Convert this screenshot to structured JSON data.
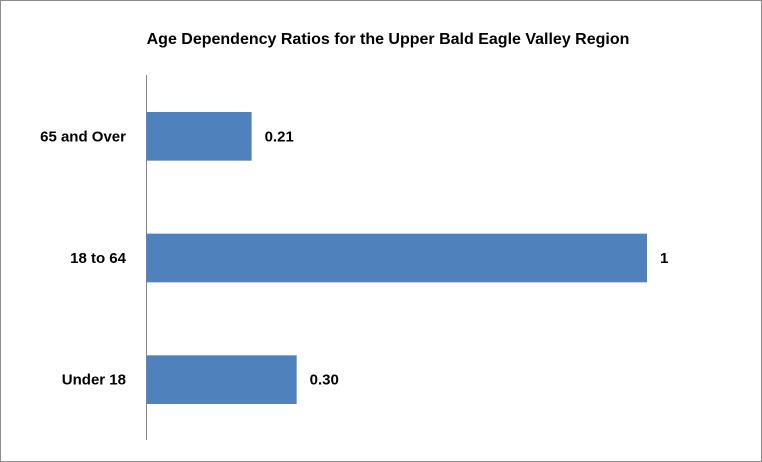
{
  "chart_data": {
    "type": "bar",
    "orientation": "horizontal",
    "title": "Age Dependency Ratios for the Upper Bald Eagle Valley Region",
    "categories": [
      "65 and Over",
      "18 to 64",
      "Under 18"
    ],
    "values": [
      0.21,
      1,
      0.3
    ],
    "value_labels": [
      "0.21",
      "1",
      "0.30"
    ],
    "color": "#4f81bd",
    "xlim": [
      0,
      1
    ]
  }
}
